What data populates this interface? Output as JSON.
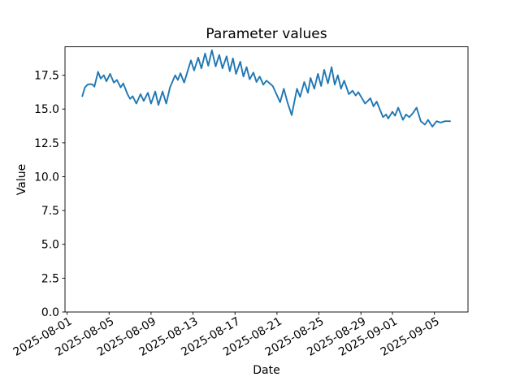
{
  "window": {
    "background": "#ffffff"
  },
  "chart_data": {
    "type": "line",
    "title": "Parameter values",
    "xlabel": "Date",
    "ylabel": "Value",
    "grid": false,
    "legend": null,
    "line_color": "#1f77b4",
    "axis_color": "#000000",
    "x_unit": "days since 2025-08-01",
    "xlim_days": [
      -0.2,
      38.2
    ],
    "ylim": [
      0,
      19.6
    ],
    "x_ticks": [
      {
        "t": 0,
        "label": "2025-08-01"
      },
      {
        "t": 4,
        "label": "2025-08-05"
      },
      {
        "t": 8,
        "label": "2025-08-09"
      },
      {
        "t": 12,
        "label": "2025-08-13"
      },
      {
        "t": 16,
        "label": "2025-08-17"
      },
      {
        "t": 20,
        "label": "2025-08-21"
      },
      {
        "t": 24,
        "label": "2025-08-25"
      },
      {
        "t": 28,
        "label": "2025-08-29"
      },
      {
        "t": 31,
        "label": "2025-09-01"
      },
      {
        "t": 35,
        "label": "2025-09-05"
      }
    ],
    "y_ticks": [
      {
        "v": 0,
        "label": "0.0"
      },
      {
        "v": 2.5,
        "label": "2.5"
      },
      {
        "v": 5,
        "label": "5.0"
      },
      {
        "v": 7.5,
        "label": "7.5"
      },
      {
        "v": 10,
        "label": "10.0"
      },
      {
        "v": 12.5,
        "label": "12.5"
      },
      {
        "v": 15,
        "label": "15.0"
      },
      {
        "v": 17.5,
        "label": "17.5"
      }
    ],
    "series": [
      {
        "name": "parameter-values",
        "color": "#1f77b4",
        "points": [
          [
            1.45,
            15.95
          ],
          [
            1.7,
            16.6
          ],
          [
            1.95,
            16.8
          ],
          [
            2.2,
            16.85
          ],
          [
            2.45,
            16.8
          ],
          [
            2.6,
            16.65
          ],
          [
            2.95,
            17.75
          ],
          [
            3.2,
            17.25
          ],
          [
            3.5,
            17.5
          ],
          [
            3.75,
            17.05
          ],
          [
            4.1,
            17.6
          ],
          [
            4.45,
            16.95
          ],
          [
            4.75,
            17.15
          ],
          [
            5.1,
            16.6
          ],
          [
            5.35,
            16.9
          ],
          [
            5.75,
            16.1
          ],
          [
            6.0,
            15.75
          ],
          [
            6.25,
            15.95
          ],
          [
            6.6,
            15.4
          ],
          [
            7.0,
            16.1
          ],
          [
            7.3,
            15.6
          ],
          [
            7.7,
            16.2
          ],
          [
            8.0,
            15.4
          ],
          [
            8.4,
            16.3
          ],
          [
            8.7,
            15.3
          ],
          [
            9.1,
            16.3
          ],
          [
            9.45,
            15.4
          ],
          [
            9.8,
            16.6
          ],
          [
            10.3,
            17.5
          ],
          [
            10.55,
            17.15
          ],
          [
            10.8,
            17.65
          ],
          [
            11.15,
            16.95
          ],
          [
            11.8,
            18.6
          ],
          [
            12.1,
            17.85
          ],
          [
            12.5,
            18.8
          ],
          [
            12.8,
            18.0
          ],
          [
            13.15,
            19.1
          ],
          [
            13.45,
            18.2
          ],
          [
            13.8,
            19.35
          ],
          [
            14.15,
            18.15
          ],
          [
            14.5,
            19.0
          ],
          [
            14.8,
            18.0
          ],
          [
            15.2,
            18.9
          ],
          [
            15.5,
            17.8
          ],
          [
            15.8,
            18.75
          ],
          [
            16.1,
            17.6
          ],
          [
            16.5,
            18.5
          ],
          [
            16.8,
            17.4
          ],
          [
            17.1,
            18.1
          ],
          [
            17.4,
            17.2
          ],
          [
            17.75,
            17.7
          ],
          [
            18.05,
            17.0
          ],
          [
            18.35,
            17.4
          ],
          [
            18.7,
            16.8
          ],
          [
            19.0,
            17.1
          ],
          [
            19.6,
            16.7
          ],
          [
            20.3,
            15.5
          ],
          [
            20.65,
            16.5
          ],
          [
            21.0,
            15.5
          ],
          [
            21.4,
            14.55
          ],
          [
            21.9,
            16.5
          ],
          [
            22.2,
            15.9
          ],
          [
            22.6,
            17.0
          ],
          [
            22.95,
            16.2
          ],
          [
            23.2,
            17.3
          ],
          [
            23.55,
            16.5
          ],
          [
            23.9,
            17.6
          ],
          [
            24.2,
            16.7
          ],
          [
            24.5,
            17.9
          ],
          [
            24.85,
            16.9
          ],
          [
            25.2,
            18.1
          ],
          [
            25.5,
            16.8
          ],
          [
            25.8,
            17.5
          ],
          [
            26.1,
            16.5
          ],
          [
            26.4,
            17.1
          ],
          [
            26.85,
            16.1
          ],
          [
            27.2,
            16.35
          ],
          [
            27.5,
            16.0
          ],
          [
            27.75,
            16.25
          ],
          [
            28.4,
            15.4
          ],
          [
            28.9,
            15.8
          ],
          [
            29.2,
            15.2
          ],
          [
            29.5,
            15.55
          ],
          [
            30.1,
            14.4
          ],
          [
            30.4,
            14.6
          ],
          [
            30.6,
            14.3
          ],
          [
            31.0,
            14.8
          ],
          [
            31.25,
            14.5
          ],
          [
            31.55,
            15.1
          ],
          [
            32.0,
            14.2
          ],
          [
            32.3,
            14.6
          ],
          [
            32.6,
            14.4
          ],
          [
            32.95,
            14.7
          ],
          [
            33.3,
            15.1
          ],
          [
            33.7,
            14.1
          ],
          [
            34.1,
            13.85
          ],
          [
            34.4,
            14.2
          ],
          [
            34.8,
            13.7
          ],
          [
            35.2,
            14.1
          ],
          [
            35.6,
            14.0
          ],
          [
            36.0,
            14.1
          ],
          [
            36.5,
            14.1
          ]
        ]
      }
    ]
  }
}
